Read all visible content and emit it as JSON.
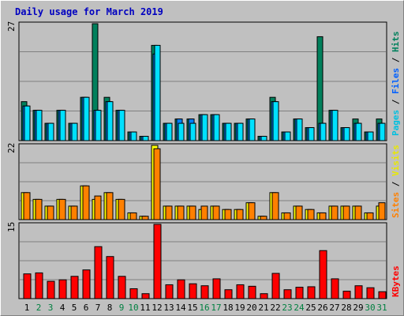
{
  "chart_data": [
    {
      "type": "bar",
      "title": "Daily usage for March 2019",
      "ymax_label": "27",
      "ylim": [
        0,
        27
      ],
      "categories": [
        "1",
        "2",
        "3",
        "4",
        "5",
        "6",
        "7",
        "8",
        "9",
        "10",
        "11",
        "12",
        "13",
        "14",
        "15",
        "16",
        "17",
        "18",
        "19",
        "20",
        "21",
        "22",
        "23",
        "24",
        "25",
        "26",
        "27",
        "28",
        "29",
        "30",
        "31"
      ],
      "weekend_days": [
        "2",
        "3",
        "9",
        "10",
        "16",
        "17",
        "23",
        "24",
        "30",
        "31"
      ],
      "legend": {
        "pages": "Pages",
        "files": "Files",
        "hits": "Hits",
        "sep1": " / ",
        "sep2": " / "
      },
      "series": [
        {
          "name": "Hits",
          "color": "#00805c",
          "values": [
            9,
            7,
            4,
            7,
            4,
            10,
            27,
            10,
            7,
            2,
            1,
            22,
            4,
            5,
            5,
            6,
            6,
            4,
            4,
            5,
            1,
            10,
            2,
            5,
            3,
            24,
            7,
            3,
            5,
            2,
            5
          ]
        },
        {
          "name": "Files",
          "color": "#0080ff",
          "values": [
            8,
            7,
            4,
            7,
            4,
            10,
            7,
            9,
            7,
            2,
            1,
            20,
            4,
            5,
            5,
            6,
            6,
            4,
            4,
            5,
            1,
            9,
            2,
            5,
            3,
            4,
            7,
            3,
            4,
            2,
            4
          ]
        },
        {
          "name": "Pages",
          "color": "#00e0ff",
          "values": [
            8,
            7,
            4,
            7,
            4,
            10,
            7,
            9,
            7,
            2,
            1,
            22,
            4,
            4,
            4,
            6,
            6,
            4,
            4,
            5,
            1,
            9,
            2,
            5,
            3,
            4,
            7,
            3,
            4,
            2,
            4
          ]
        }
      ]
    },
    {
      "type": "bar",
      "ymax_label": "22",
      "ylim": [
        0,
        22
      ],
      "legend": {
        "sites": "Sites",
        "visits": "Visits",
        "sep": " / "
      },
      "series": [
        {
          "name": "Visits",
          "color": "#ffff00",
          "values": [
            8,
            6,
            4,
            6,
            4,
            10,
            6,
            8,
            6,
            2,
            1,
            22,
            4,
            4,
            4,
            3,
            4,
            3,
            3,
            5,
            1,
            8,
            2,
            4,
            3,
            2,
            4,
            4,
            4,
            2,
            4
          ]
        },
        {
          "name": "Sites",
          "color": "#ff8000",
          "values": [
            8,
            6,
            4,
            6,
            4,
            10,
            7,
            8,
            6,
            2,
            1,
            21,
            4,
            4,
            4,
            4,
            4,
            3,
            3,
            5,
            1,
            8,
            2,
            4,
            3,
            2,
            4,
            4,
            4,
            2,
            5
          ]
        }
      ]
    },
    {
      "type": "bar",
      "ymax_label": "15",
      "ylim": [
        0,
        15
      ],
      "legend": {
        "kbytes": "KBytes"
      },
      "series": [
        {
          "name": "KBytes",
          "color": "#ff0000",
          "values": [
            5,
            5.2,
            3.5,
            3.8,
            4.5,
            5.8,
            10.5,
            8.5,
            4.5,
            2,
            1,
            15,
            2.8,
            3.8,
            3,
            2.6,
            4,
            1.8,
            2.8,
            2.5,
            1,
            5.1,
            1.8,
            2.3,
            2.4,
            9.7,
            4,
            1.5,
            2.6,
            2.2,
            1.4
          ]
        }
      ]
    }
  ]
}
